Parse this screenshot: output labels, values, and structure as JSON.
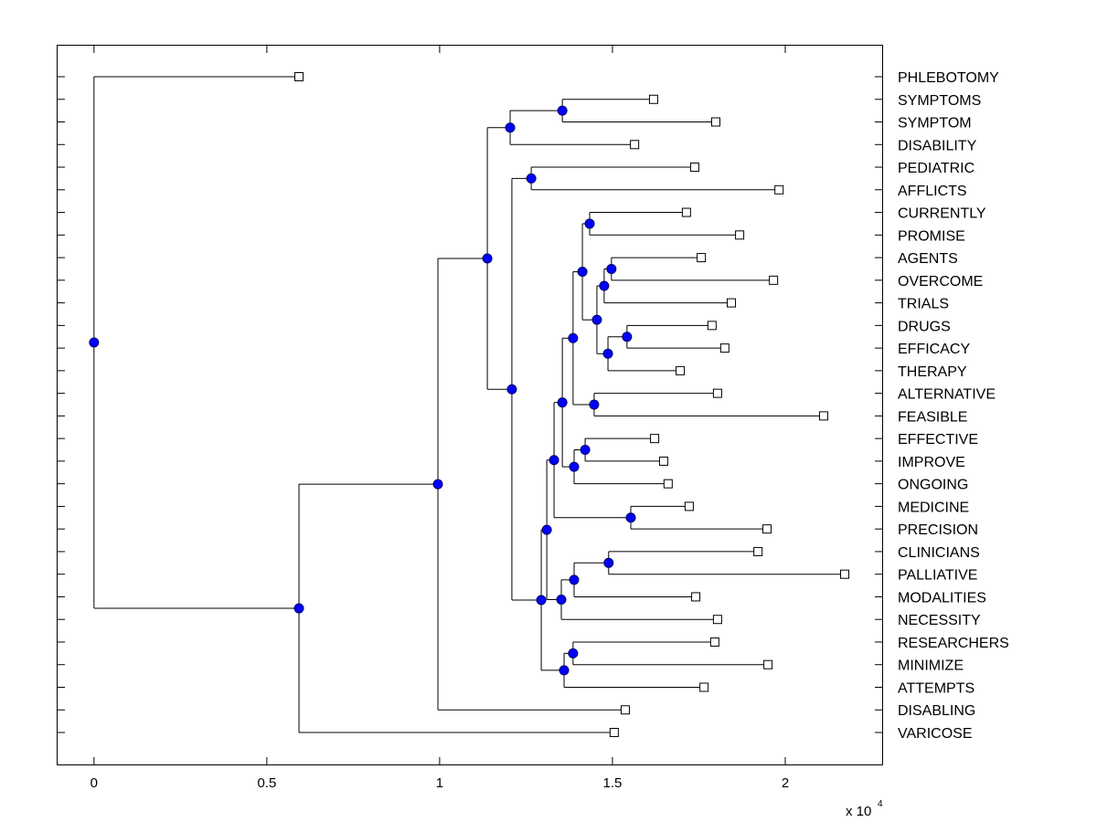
{
  "chart_data": {
    "type": "dendrogram",
    "title": "",
    "xlabel": "",
    "ylabel": "",
    "x_scale_exponent_label": "x 10",
    "x_scale_exponent": "4",
    "xlim": [
      -1080,
      22830
    ],
    "xticks": [
      0,
      5000,
      10000,
      15000,
      20000
    ],
    "xtick_labels": [
      "0",
      "0.5",
      "1",
      "1.5",
      "2"
    ],
    "orientation": "leaves-right",
    "grid": false,
    "colors": {
      "line": "#000000",
      "node_fill": "#0000ff",
      "node_edge": "#000066",
      "leaf_fill": "#ffffff",
      "leaf_edge": "#000000"
    },
    "leaves": [
      {
        "label": "PHLEBOTOMY",
        "distance": 5930
      },
      {
        "label": "SYMPTOMS",
        "distance": 16190
      },
      {
        "label": "SYMPTOM",
        "distance": 17990
      },
      {
        "label": "DISABILITY",
        "distance": 15640
      },
      {
        "label": "PEDIATRIC",
        "distance": 17380
      },
      {
        "label": "AFFLICTS",
        "distance": 19820
      },
      {
        "label": "CURRENTLY",
        "distance": 17140
      },
      {
        "label": "PROMISE",
        "distance": 18680
      },
      {
        "label": "AGENTS",
        "distance": 17570
      },
      {
        "label": "OVERCOME",
        "distance": 19660
      },
      {
        "label": "TRIALS",
        "distance": 18440
      },
      {
        "label": "DRUGS",
        "distance": 17880
      },
      {
        "label": "EFFICACY",
        "distance": 18250
      },
      {
        "label": "THERAPY",
        "distance": 16960
      },
      {
        "label": "ALTERNATIVE",
        "distance": 18040
      },
      {
        "label": "FEASIBLE",
        "distance": 21110
      },
      {
        "label": "EFFECTIVE",
        "distance": 16220
      },
      {
        "label": "IMPROVE",
        "distance": 16480
      },
      {
        "label": "ONGOING",
        "distance": 16610
      },
      {
        "label": "MEDICINE",
        "distance": 17220
      },
      {
        "label": "PRECISION",
        "distance": 19470
      },
      {
        "label": "CLINICIANS",
        "distance": 19210
      },
      {
        "label": "PALLIATIVE",
        "distance": 21720
      },
      {
        "label": "MODALITIES",
        "distance": 17410
      },
      {
        "label": "NECESSITY",
        "distance": 18040
      },
      {
        "label": "RESEARCHERS",
        "distance": 17960
      },
      {
        "label": "MINIMIZE",
        "distance": 19500
      },
      {
        "label": "ATTEMPTS",
        "distance": 17650
      },
      {
        "label": "DISABLING",
        "distance": 15370
      },
      {
        "label": "VARICOSE",
        "distance": 15050
      }
    ],
    "tree": {
      "d": 0,
      "children": [
        {
          "leaf": 0
        },
        {
          "d": 5930,
          "children": [
            {
              "d": 9950,
              "children": [
                {
                  "d": 11380,
                  "children": [
                    {
                      "d": 12040,
                      "children": [
                        {
                          "d": 13550,
                          "children": [
                            {
                              "leaf": 1
                            },
                            {
                              "leaf": 2
                            }
                          ]
                        },
                        {
                          "leaf": 3
                        }
                      ]
                    },
                    {
                      "d": 12090,
                      "children": [
                        {
                          "d": 12650,
                          "children": [
                            {
                              "leaf": 4
                            },
                            {
                              "leaf": 5
                            }
                          ]
                        },
                        {
                          "d": 12940,
                          "children": [
                            {
                              "d": 13100,
                              "children": [
                                {
                                  "d": 13310,
                                  "children": [
                                    {
                                      "d": 13550,
                                      "children": [
                                        {
                                          "d": 13860,
                                          "children": [
                                            {
                                              "d": 14130,
                                              "children": [
                                                {
                                                  "d": 14340,
                                                  "children": [
                                                    {
                                                      "leaf": 6
                                                    },
                                                    {
                                                      "leaf": 7
                                                    }
                                                  ]
                                                },
                                                {
                                                  "d": 14550,
                                                  "children": [
                                                    {
                                                      "d": 14760,
                                                      "children": [
                                                        {
                                                          "d": 14970,
                                                          "children": [
                                                            {
                                                              "leaf": 8
                                                            },
                                                            {
                                                              "leaf": 9
                                                            }
                                                          ]
                                                        },
                                                        {
                                                          "leaf": 10
                                                        }
                                                      ]
                                                    },
                                                    {
                                                      "d": 14870,
                                                      "children": [
                                                        {
                                                          "d": 15420,
                                                          "children": [
                                                            {
                                                              "leaf": 11
                                                            },
                                                            {
                                                              "leaf": 12
                                                            }
                                                          ]
                                                        },
                                                        {
                                                          "leaf": 13
                                                        }
                                                      ]
                                                    }
                                                  ]
                                                }
                                              ]
                                            },
                                            {
                                              "d": 14470,
                                              "children": [
                                                {
                                                  "leaf": 14
                                                },
                                                {
                                                  "leaf": 15
                                                }
                                              ]
                                            }
                                          ]
                                        },
                                        {
                                          "d": 13890,
                                          "children": [
                                            {
                                              "d": 14210,
                                              "children": [
                                                {
                                                  "leaf": 16
                                                },
                                                {
                                                  "leaf": 17
                                                }
                                              ]
                                            },
                                            {
                                              "leaf": 18
                                            }
                                          ]
                                        }
                                      ]
                                    },
                                    {
                                      "d": 15530,
                                      "children": [
                                        {
                                          "leaf": 19
                                        },
                                        {
                                          "leaf": 20
                                        }
                                      ]
                                    }
                                  ]
                                },
                                {
                                  "d": 13520,
                                  "children": [
                                    {
                                      "d": 13890,
                                      "children": [
                                        {
                                          "d": 14890,
                                          "children": [
                                            {
                                              "leaf": 21
                                            },
                                            {
                                              "leaf": 22
                                            }
                                          ]
                                        },
                                        {
                                          "leaf": 23
                                        }
                                      ]
                                    },
                                    {
                                      "leaf": 24
                                    }
                                  ]
                                }
                              ]
                            },
                            {
                              "d": 13600,
                              "children": [
                                {
                                  "d": 13860,
                                  "children": [
                                    {
                                      "leaf": 25
                                    },
                                    {
                                      "leaf": 26
                                    }
                                  ]
                                },
                                {
                                  "leaf": 27
                                }
                              ]
                            }
                          ]
                        }
                      ]
                    }
                  ]
                },
                {
                  "leaf": 28
                }
              ]
            },
            {
              "leaf": 29
            }
          ]
        }
      ]
    }
  }
}
